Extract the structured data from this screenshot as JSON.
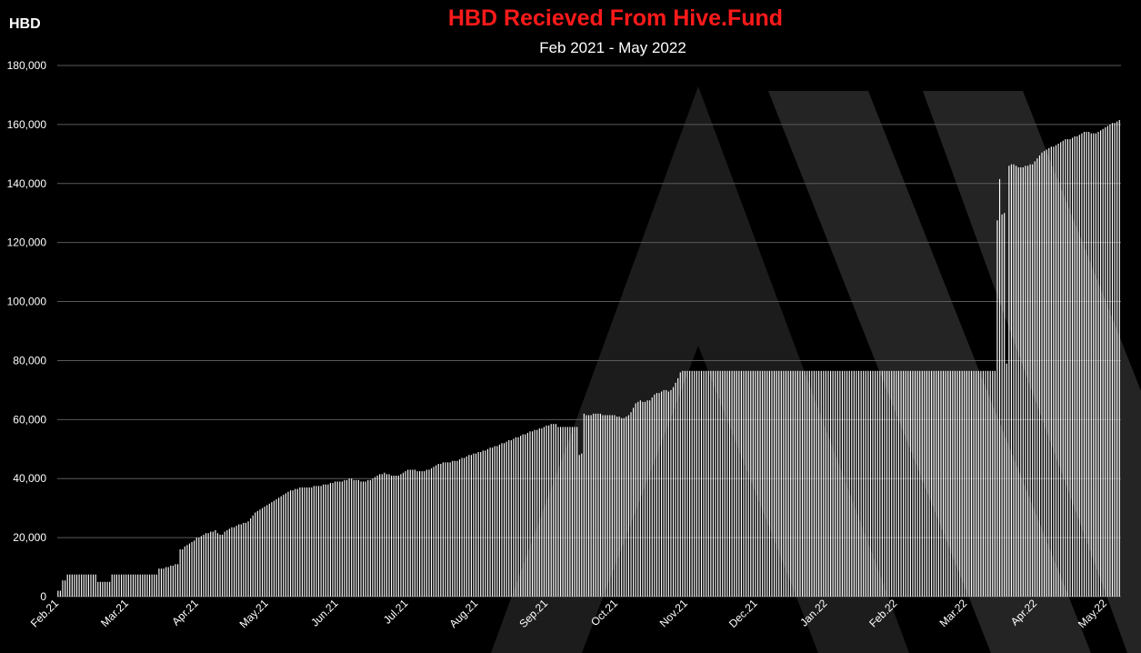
{
  "colors": {
    "background": "#000000",
    "title": "#ff1a1a",
    "text": "#ffffff",
    "bars": "#ffffff",
    "grid": "#5a5a5a",
    "watermark": "#2a2a2a"
  },
  "watermark": "hive-logo-chevrons",
  "chart_data": {
    "type": "bar",
    "title": "HBD Recieved From Hive.Fund",
    "subtitle": "Feb 2021 - May 2022",
    "xlabel": "",
    "ylabel": "HBD",
    "ylim": [
      0,
      180000
    ],
    "grid": true,
    "yticks": [
      0,
      20000,
      40000,
      60000,
      80000,
      100000,
      120000,
      140000,
      160000,
      180000
    ],
    "ytick_labels": [
      "0",
      "20,000",
      "40,000",
      "60,000",
      "80,000",
      "100,000",
      "120,000",
      "140,000",
      "160,000",
      "180,000"
    ],
    "xtick_labels": [
      "Feb.21",
      "Mar.21",
      "Apr.21",
      "May.21",
      "Jun.21",
      "Jul.21",
      "Aug.21",
      "Sep.21",
      "Oct.21",
      "Nov.21",
      "Dec.21",
      "Jan.22",
      "Feb.22",
      "Mar.22",
      "Apr.22",
      "May.22"
    ],
    "bar_count": 455,
    "series": [
      {
        "values": [
          2000,
          2000,
          5500,
          5500,
          7500,
          7500,
          7500,
          7500,
          7500,
          7500,
          7500,
          7500,
          7500,
          7500,
          7500,
          7500,
          7500,
          5000,
          5000,
          5000,
          5000,
          5000,
          5000,
          7500,
          7500,
          7500,
          7500,
          7500,
          7500,
          7500,
          7500,
          7500,
          7500,
          7500,
          7500,
          7500,
          7500,
          7500,
          7500,
          7500,
          7500,
          7500,
          7500,
          9500,
          9500,
          9500,
          10000,
          10000,
          10500,
          10500,
          11000,
          11000,
          16000,
          16000,
          17000,
          17500,
          18000,
          18500,
          19000,
          20000,
          20000,
          20500,
          21000,
          21500,
          21500,
          22000,
          22000,
          22500,
          21500,
          21000,
          21000,
          22000,
          22500,
          23000,
          23500,
          23500,
          24000,
          24500,
          24500,
          25000,
          25000,
          25500,
          26500,
          27500,
          28500,
          29000,
          29500,
          30000,
          30500,
          31000,
          31500,
          32000,
          32500,
          33000,
          33500,
          34000,
          34500,
          35000,
          35500,
          36000,
          36000,
          36500,
          36500,
          37000,
          37000,
          37000,
          37000,
          37000,
          37000,
          37500,
          37500,
          37500,
          37500,
          38000,
          38000,
          38000,
          38500,
          38500,
          39000,
          39000,
          39000,
          39000,
          39500,
          39500,
          40000,
          40000,
          39500,
          39500,
          39500,
          39000,
          39000,
          39000,
          39500,
          39500,
          40000,
          40500,
          41000,
          41500,
          41500,
          42000,
          41500,
          41500,
          41000,
          41000,
          41000,
          41000,
          41500,
          42000,
          42500,
          43000,
          43000,
          43000,
          43000,
          42500,
          42500,
          42500,
          42500,
          43000,
          43000,
          43500,
          44000,
          44500,
          45000,
          45000,
          45500,
          45500,
          45500,
          45500,
          46000,
          46000,
          46000,
          46500,
          47000,
          47000,
          47500,
          48000,
          48000,
          48500,
          48500,
          49000,
          49000,
          49500,
          49500,
          50000,
          50500,
          50500,
          51000,
          51000,
          51500,
          52000,
          52000,
          52500,
          53000,
          53000,
          53500,
          54000,
          54000,
          54500,
          55000,
          55000,
          55500,
          56000,
          56000,
          56500,
          56500,
          57000,
          57000,
          57500,
          58000,
          58000,
          58500,
          58500,
          58500,
          57500,
          57500,
          57500,
          57500,
          57500,
          57500,
          57500,
          57500,
          57500,
          48000,
          48500,
          62000,
          61500,
          61500,
          61500,
          62000,
          62000,
          62000,
          62000,
          61500,
          61500,
          61500,
          61500,
          61500,
          61500,
          61000,
          61000,
          60500,
          60500,
          61000,
          61500,
          62500,
          64000,
          65500,
          66000,
          66500,
          66000,
          66000,
          66500,
          66500,
          67500,
          68500,
          69000,
          69000,
          69500,
          70000,
          70000,
          69500,
          70000,
          71000,
          72500,
          74000,
          76000,
          76500,
          76500,
          76500,
          76500,
          76500,
          76500,
          76500,
          76500,
          76500,
          76500,
          76500,
          76500,
          76500,
          76500,
          76500,
          76500,
          76500,
          76500,
          76500,
          76500,
          76500,
          76500,
          76500,
          76500,
          76500,
          76500,
          76500,
          76500,
          76500,
          76500,
          76500,
          76500,
          76500,
          76500,
          76500,
          76500,
          76500,
          76500,
          76500,
          76500,
          76500,
          76500,
          76500,
          76500,
          76500,
          76500,
          76500,
          76500,
          76500,
          76500,
          76500,
          76500,
          76500,
          76500,
          76500,
          76500,
          76500,
          76500,
          76500,
          76500,
          76500,
          76500,
          76500,
          76500,
          76500,
          76500,
          76500,
          76500,
          76500,
          76500,
          76500,
          76500,
          76500,
          76500,
          76500,
          76500,
          76500,
          76500,
          76500,
          76500,
          76500,
          76500,
          76500,
          76500,
          76500,
          76500,
          76500,
          76500,
          76500,
          76500,
          76500,
          76500,
          76500,
          76500,
          76500,
          76500,
          76500,
          76500,
          76500,
          76500,
          76500,
          76500,
          76500,
          76500,
          76500,
          76500,
          76500,
          76500,
          76500,
          76500,
          76500,
          76500,
          76500,
          76500,
          76500,
          76500,
          76500,
          76500,
          76500,
          76500,
          76500,
          76500,
          76500,
          76500,
          76500,
          76500,
          76500,
          76500,
          76500,
          76500,
          76500,
          76500,
          76500,
          76500,
          127500,
          141500,
          129500,
          130000,
          79000,
          146000,
          146500,
          146500,
          146000,
          145500,
          145500,
          145500,
          146000,
          146000,
          146500,
          146500,
          147500,
          148500,
          149500,
          150500,
          151000,
          151500,
          152000,
          152500,
          152500,
          153000,
          153500,
          154000,
          154500,
          155000,
          155000,
          155000,
          155500,
          156000,
          156000,
          156500,
          157000,
          157500,
          157500,
          157500,
          157000,
          157000,
          157000,
          157500,
          158000,
          158500,
          159000,
          159500,
          160000,
          160500,
          160500,
          161000,
          161500
        ]
      }
    ]
  }
}
